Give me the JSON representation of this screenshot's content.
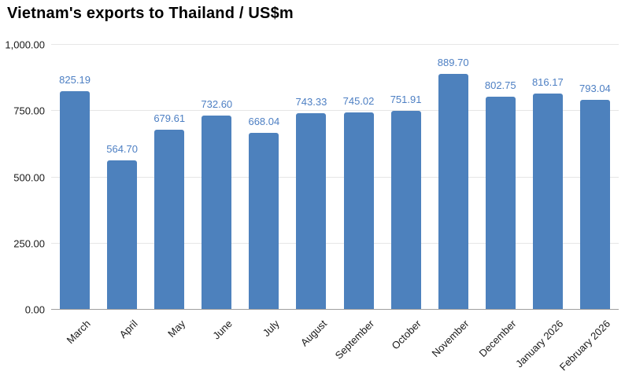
{
  "title": "Vietnam's exports to Thailand / US$m",
  "chart_data": {
    "type": "bar",
    "title": "Vietnam's exports to Thailand / US$m",
    "categories": [
      "March",
      "April",
      "May",
      "June",
      "July",
      "August",
      "September",
      "October",
      "November",
      "December",
      "January 2026",
      "February 2026"
    ],
    "values": [
      825.19,
      564.7,
      679.61,
      732.6,
      668.04,
      743.33,
      745.02,
      751.91,
      889.7,
      802.75,
      816.17,
      793.04
    ],
    "value_labels": [
      "825.19",
      "564.70",
      "679.61",
      "732.60",
      "668.04",
      "743.33",
      "745.02",
      "751.91",
      "889.70",
      "802.75",
      "816.17",
      "793.04"
    ],
    "xlabel": "",
    "ylabel": "",
    "ylim": [
      0,
      1000
    ],
    "yticks": [
      0,
      250,
      500,
      750,
      1000
    ],
    "ytick_labels": [
      "0.00",
      "250.00",
      "500.00",
      "750.00",
      "1,000.00"
    ],
    "grid": true,
    "legend": false,
    "colors": {
      "bar": "#4d81bd",
      "value_label": "#4d7fc3",
      "gridline": "#e6e6e6",
      "axis_line": "#9e9e9e",
      "tick_label": "#1a1a1a",
      "title": "#000000"
    }
  }
}
